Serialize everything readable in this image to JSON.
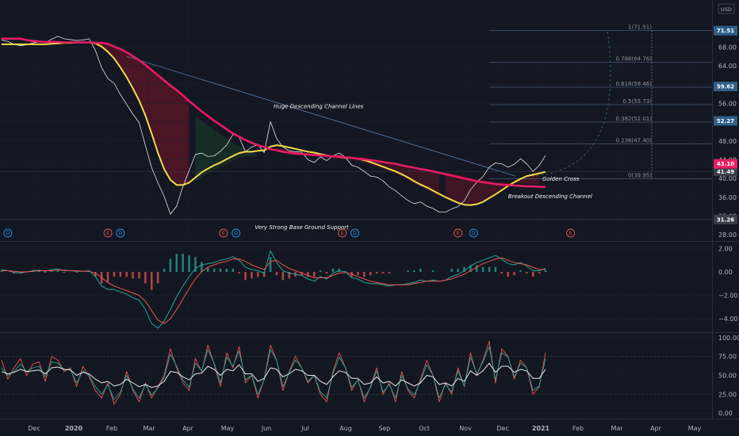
{
  "chart_data": [
    {
      "type": "line",
      "panel": "price",
      "currency": "USD",
      "x_labels": [
        "Dec",
        "2020",
        "Feb",
        "Mar",
        "Apr",
        "May",
        "Jun",
        "Jul",
        "Aug",
        "Sep",
        "Oct",
        "Nov",
        "Dec",
        "2021",
        "Feb",
        "Mar",
        "Apr",
        "May"
      ],
      "y_ticks": [
        "68.00",
        "64.00",
        "60.00",
        "56.00",
        "52.00",
        "48.00",
        "44.00",
        "40.00",
        "36.00",
        "32.00",
        "28.00"
      ],
      "ylim": [
        27,
        75
      ],
      "series": [
        {
          "color": "#ffffff",
          "values": [
            69.5,
            69.2,
            68.6,
            68.3,
            68.5,
            68.9,
            69.1,
            69.0,
            69.7,
            70.3,
            69.8,
            69.6,
            69.4,
            69.5,
            69.8,
            67.3,
            63.6,
            61.3,
            60.3,
            57.9,
            55.8,
            53.7,
            51.9,
            47.0,
            42.3,
            39.1,
            36.2,
            32.4,
            34.1,
            38.3,
            41.7,
            45.1,
            45.4,
            44.7,
            44.8,
            45.8,
            47.1,
            49.4,
            48.8,
            45.7,
            46.7,
            47.2,
            45.5,
            52.1,
            48.5,
            46.7,
            45.9,
            45.7,
            45.6,
            44.0,
            43.4,
            44.6,
            43.8,
            44.8,
            45.4,
            44.5,
            42.8,
            42.4,
            41.5,
            40.5,
            40.3,
            39.5,
            38.2,
            37.4,
            36.3,
            35.3,
            34.6,
            35.0,
            34.1,
            33.6,
            32.8,
            32.8,
            33.5,
            34.0,
            35.2,
            37.6,
            39.2,
            40.4,
            42.4,
            43.3,
            43.1,
            42.4,
            43.0,
            44.2,
            43.1,
            41.5,
            42.8,
            44.9
          ]
        },
        {
          "color": "#f5d94a",
          "values": [
            68.6,
            68.6,
            68.6,
            68.6,
            68.6,
            68.6,
            68.6,
            68.6,
            68.7,
            68.8,
            68.9,
            68.9,
            69.0,
            69.0,
            69.0,
            68.8,
            68.1,
            67.0,
            65.6,
            63.7,
            61.6,
            59.2,
            56.6,
            53.4,
            49.6,
            45.5,
            42.0,
            39.7,
            38.6,
            38.6,
            39.1,
            40.2,
            41.3,
            42.1,
            42.8,
            43.4,
            44.1,
            44.8,
            45.4,
            45.7,
            45.7,
            45.9,
            46.0,
            46.8,
            47.1,
            46.9,
            46.6,
            46.3,
            46.0,
            45.7,
            45.5,
            45.2,
            44.9,
            44.7,
            44.6,
            44.4,
            44.4,
            44.2,
            43.9,
            43.5,
            43.0,
            42.5,
            42.0,
            41.5,
            40.9,
            40.2,
            39.4,
            38.7,
            38.1,
            37.4,
            36.7,
            36.0,
            35.4,
            34.8,
            34.4,
            34.3,
            34.5,
            35.0,
            35.8,
            36.6,
            37.5,
            38.4,
            39.2,
            39.9,
            40.5,
            40.8,
            41.1,
            41.4
          ]
        },
        {
          "color": "#ea1a64",
          "values": [
            69.8,
            69.8,
            69.8,
            69.8,
            69.5,
            69.3,
            69.2,
            69.1,
            69.1,
            69.1,
            69.0,
            69.0,
            69.0,
            69.0,
            69.0,
            68.9,
            68.9,
            68.7,
            68.1,
            67.6,
            66.9,
            66.1,
            65.2,
            64.2,
            63.1,
            62.0,
            60.9,
            59.8,
            58.8,
            57.7,
            56.5,
            55.4,
            54.3,
            53.3,
            52.3,
            51.4,
            50.5,
            49.6,
            48.9,
            48.2,
            47.6,
            47.1,
            46.7,
            46.2,
            46.0,
            45.7,
            45.5,
            45.3,
            45.2,
            45.1,
            45.0,
            44.9,
            44.8,
            44.7,
            44.7,
            44.5,
            44.4,
            44.2,
            44.1,
            43.9,
            43.7,
            43.5,
            43.3,
            43.1,
            42.8,
            42.5,
            42.3,
            42.0,
            41.8,
            41.5,
            41.2,
            40.9,
            40.6,
            40.3,
            40.0,
            39.7,
            39.4,
            39.2,
            39.0,
            38.8,
            38.7,
            38.6,
            38.5,
            38.4,
            38.3,
            38.3,
            38.2,
            38.2
          ]
        }
      ],
      "last_price_tag": "43.10",
      "fib_retracement": [
        {
          "label": "1(71.51)",
          "value": 71.51
        },
        {
          "label": "0.786(64.76)",
          "value": 64.76
        },
        {
          "label": "0.618(59.46)",
          "value": 59.46
        },
        {
          "label": "0.5(55.73)",
          "value": 55.73
        },
        {
          "label": "0.382(52.01)",
          "value": 52.01
        },
        {
          "label": "0.236(47.40)",
          "value": 47.4
        },
        {
          "label": "0(39.95)",
          "value": 39.95
        }
      ],
      "price_tags": [
        {
          "text": "71.51",
          "value": 71.51,
          "color": "#2f5f8a"
        },
        {
          "text": "59.62",
          "value": 59.62,
          "color": "#2f5f8a"
        },
        {
          "text": "52.27",
          "value": 52.27,
          "color": "#2f5f8a"
        },
        {
          "text": "41.49",
          "value": 41.49,
          "color": "#3a3e48"
        },
        {
          "text": "31.26",
          "value": 31.26,
          "color": "#3a3e48"
        }
      ],
      "annotations": [
        {
          "text": "Huge Descending Channel Lines",
          "x": 43.5,
          "y": 55
        },
        {
          "text": "Golden Cross",
          "x": 86.5,
          "y": 39.5
        },
        {
          "text": "Breakout Descending Channel",
          "x": 81,
          "y": 35.8
        },
        {
          "text": "Very Strong Base Ground Support",
          "x": 40.5,
          "y": 29.2
        }
      ],
      "events": [
        {
          "type": "D",
          "x": 1
        },
        {
          "type": "E",
          "x": 17
        },
        {
          "type": "D",
          "x": 19
        },
        {
          "type": "E",
          "x": 35.5
        },
        {
          "type": "D",
          "x": 37.5
        },
        {
          "type": "E",
          "x": 54.5
        },
        {
          "type": "D",
          "x": 56.5
        },
        {
          "type": "E",
          "x": 73
        },
        {
          "type": "D",
          "x": 75.5
        },
        {
          "type": "E",
          "x": 91
        }
      ]
    },
    {
      "type": "line",
      "panel": "macd",
      "y_ticks": [
        "2.00",
        "0.00",
        "−2.00",
        "−4.00"
      ],
      "ylim": [
        -5,
        2.5
      ],
      "series": [
        {
          "color": "#26a69a",
          "values": [
            0.2,
            0.1,
            -0.05,
            -0.1,
            0.0,
            0.1,
            0.15,
            0.05,
            0.2,
            0.25,
            0.1,
            0.1,
            0.05,
            0.05,
            0.1,
            -0.4,
            -1.2,
            -1.5,
            -1.5,
            -1.7,
            -1.9,
            -2.2,
            -2.4,
            -3.2,
            -4.4,
            -4.8,
            -4.2,
            -3.2,
            -2.1,
            -1.2,
            -0.4,
            0.3,
            0.6,
            0.7,
            0.8,
            1.0,
            1.1,
            1.3,
            1.0,
            0.4,
            0.2,
            0.1,
            -0.1,
            1.8,
            0.8,
            0.1,
            -0.1,
            -0.2,
            -0.3,
            -0.6,
            -0.8,
            -0.4,
            -0.6,
            -0.1,
            0.1,
            0.0,
            -0.5,
            -0.6,
            -0.9,
            -1.0,
            -1.0,
            -1.1,
            -1.2,
            -1.1,
            -1.1,
            -1.0,
            -0.9,
            -0.7,
            -0.8,
            -0.7,
            -0.8,
            -0.7,
            -0.4,
            -0.2,
            0.1,
            0.5,
            0.8,
            1.0,
            1.2,
            1.4,
            1.1,
            0.7,
            0.6,
            0.8,
            0.5,
            0.1,
            0.1,
            0.3
          ]
        },
        {
          "color": "#ef5350",
          "values": [
            0.1,
            0.1,
            0.05,
            0.0,
            0.0,
            0.05,
            0.1,
            0.1,
            0.1,
            0.15,
            0.15,
            0.1,
            0.1,
            0.05,
            0.05,
            -0.1,
            -0.5,
            -0.9,
            -1.2,
            -1.4,
            -1.6,
            -1.8,
            -2.0,
            -2.5,
            -3.3,
            -4.1,
            -4.4,
            -4.0,
            -3.2,
            -2.3,
            -1.4,
            -0.6,
            0.0,
            0.4,
            0.6,
            0.8,
            0.9,
            1.1,
            1.1,
            0.9,
            0.6,
            0.4,
            0.2,
            0.9,
            1.0,
            0.6,
            0.3,
            0.1,
            -0.1,
            -0.3,
            -0.5,
            -0.5,
            -0.5,
            -0.3,
            -0.1,
            -0.05,
            -0.2,
            -0.4,
            -0.6,
            -0.8,
            -0.9,
            -1.0,
            -1.1,
            -1.1,
            -1.1,
            -1.1,
            -1.0,
            -0.9,
            -0.8,
            -0.8,
            -0.8,
            -0.7,
            -0.6,
            -0.4,
            -0.2,
            0.1,
            0.4,
            0.7,
            0.9,
            1.1,
            1.2,
            1.0,
            0.8,
            0.7,
            0.6,
            0.4,
            0.2,
            0.2
          ]
        }
      ]
    },
    {
      "type": "line",
      "panel": "oscillator",
      "y_ticks": [
        "100.00",
        "75.00",
        "50.00",
        "25.00",
        "0.00"
      ],
      "ylim": [
        -5,
        105
      ],
      "series": [
        {
          "color": "#ef5350",
          "values": [
            70,
            45,
            60,
            72,
            50,
            65,
            68,
            42,
            75,
            70,
            55,
            60,
            35,
            62,
            48,
            30,
            20,
            40,
            12,
            25,
            55,
            30,
            15,
            40,
            20,
            35,
            50,
            85,
            60,
            40,
            30,
            72,
            55,
            90,
            65,
            35,
            80,
            60,
            88,
            40,
            50,
            20,
            45,
            90,
            70,
            30,
            55,
            75,
            60,
            40,
            50,
            25,
            15,
            55,
            80,
            60,
            30,
            45,
            15,
            35,
            60,
            25,
            40,
            15,
            55,
            30,
            20,
            45,
            70,
            50,
            15,
            40,
            25,
            60,
            35,
            80,
            50,
            70,
            95,
            40,
            85,
            75,
            45,
            70,
            60,
            25,
            35,
            80
          ]
        },
        {
          "color": "#26a69a",
          "values": [
            60,
            50,
            55,
            65,
            55,
            60,
            62,
            48,
            68,
            66,
            57,
            58,
            40,
            56,
            50,
            35,
            25,
            38,
            18,
            28,
            50,
            32,
            20,
            38,
            24,
            33,
            47,
            78,
            62,
            44,
            34,
            66,
            56,
            84,
            66,
            40,
            74,
            62,
            82,
            44,
            50,
            25,
            44,
            84,
            70,
            35,
            54,
            70,
            60,
            42,
            50,
            28,
            20,
            52,
            74,
            60,
            34,
            44,
            20,
            34,
            56,
            28,
            38,
            20,
            50,
            32,
            24,
            42,
            64,
            50,
            20,
            38,
            28,
            56,
            36,
            74,
            52,
            68,
            88,
            44,
            80,
            74,
            48,
            66,
            60,
            30,
            36,
            72
          ]
        },
        {
          "color": "#e8e8e8",
          "values": [
            55,
            52,
            54,
            58,
            55,
            56,
            57,
            52,
            60,
            61,
            58,
            57,
            50,
            54,
            52,
            45,
            40,
            42,
            36,
            38,
            45,
            40,
            35,
            38,
            34,
            36,
            42,
            55,
            54,
            48,
            44,
            52,
            53,
            62,
            58,
            50,
            58,
            56,
            64,
            52,
            52,
            42,
            46,
            60,
            58,
            48,
            52,
            58,
            56,
            50,
            50,
            42,
            38,
            48,
            56,
            54,
            46,
            46,
            38,
            40,
            48,
            40,
            42,
            36,
            44,
            40,
            36,
            40,
            50,
            48,
            38,
            40,
            36,
            46,
            42,
            56,
            50,
            56,
            66,
            54,
            62,
            62,
            54,
            58,
            56,
            46,
            46,
            58
          ]
        }
      ]
    }
  ]
}
